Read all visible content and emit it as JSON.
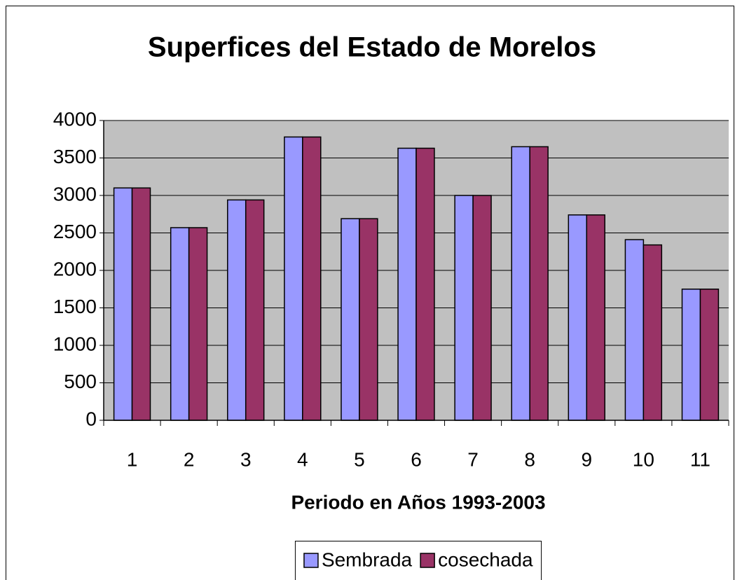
{
  "chart_data": {
    "type": "bar",
    "title": "Superfices del Estado de Morelos",
    "x_label": "Periodo en Años 1993-2003",
    "categories": [
      "1",
      "2",
      "3",
      "4",
      "5",
      "6",
      "7",
      "8",
      "9",
      "10",
      "11"
    ],
    "series": [
      {
        "name": "Sembrada",
        "color": "#9999ff",
        "values": [
          3100,
          2570,
          2940,
          3780,
          2690,
          3630,
          3000,
          3650,
          2740,
          2410,
          1750
        ]
      },
      {
        "name": "cosechada",
        "color": "#993366",
        "values": [
          3100,
          2570,
          2940,
          3780,
          2690,
          3630,
          3000,
          3650,
          2740,
          2340,
          1750
        ]
      }
    ],
    "ylim": [
      0,
      4000
    ],
    "yticks": [
      0,
      500,
      1000,
      1500,
      2000,
      2500,
      3000,
      3500,
      4000
    ],
    "grid": true,
    "legend": "bottom",
    "plot_background": "#c0c0c0"
  }
}
